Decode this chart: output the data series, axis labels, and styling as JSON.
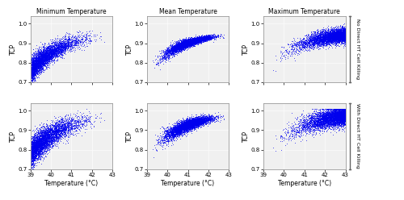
{
  "title_top": [
    "Minimum Temperature",
    "Mean Temperature",
    "Maximum Temperature"
  ],
  "row_label_top": "No Direct HT Cell Killing",
  "row_label_bot": "With Direct HT Cell Killing",
  "xlabel": "Temperature (°C)",
  "ylabel": "TCP",
  "x_min": 39,
  "x_max": 43,
  "y_min": 0.7,
  "y_max": 1.04,
  "yticks": [
    0.7,
    0.8,
    0.9,
    1.0
  ],
  "n_patients": 5200,
  "n_sessions": 4,
  "point_color": "#0000EE",
  "point_size": 0.5,
  "point_alpha": 0.5,
  "seed": 12345,
  "bg_color": "#f0f0f0"
}
